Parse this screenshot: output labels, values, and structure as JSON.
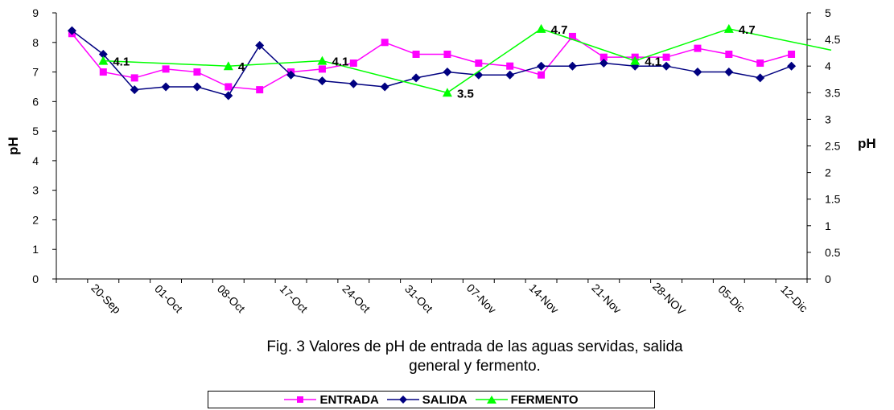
{
  "chart_data": {
    "type": "line",
    "title": "",
    "caption_line1": "Fig. 3 Valores de pH de entrada de las aguas servidas, salida",
    "caption_line2": "general y fermento.",
    "ylabel": "pH",
    "y2label": "pH",
    "ylim": [
      0,
      9
    ],
    "y2lim": [
      0,
      5
    ],
    "yticks": [
      0,
      1,
      2,
      3,
      4,
      5,
      6,
      7,
      8,
      9
    ],
    "y2ticks": [
      "0",
      "0.5",
      "1",
      "1.5",
      "2",
      "2.5",
      "3",
      "3.5",
      "4",
      "4.5",
      "5"
    ],
    "xticks": [
      "20-Sep",
      "01-Oct",
      "08-Oct",
      "17-Oct",
      "24-Oct",
      "31-Oct",
      "07-Nov",
      "14-Nov",
      "21-Nov",
      "28-NOV",
      "05-Dic",
      "12-Dic"
    ],
    "grid": false,
    "legend_position": "bottom",
    "series": [
      {
        "name": "ENTRADA",
        "color": "#ff00ff",
        "marker": "square",
        "axis": "left",
        "values": [
          8.3,
          7.0,
          6.8,
          7.1,
          7.0,
          6.5,
          6.4,
          7.0,
          7.1,
          7.3,
          8.0,
          7.6,
          7.6,
          7.3,
          7.2,
          6.9,
          8.2,
          7.5,
          7.5,
          7.5,
          7.8,
          7.6,
          7.3,
          7.6
        ]
      },
      {
        "name": "SALIDA",
        "color": "#000080",
        "marker": "diamond",
        "axis": "left",
        "values": [
          8.4,
          7.6,
          6.4,
          6.5,
          6.5,
          6.2,
          7.9,
          6.9,
          6.7,
          6.6,
          6.5,
          6.8,
          7.0,
          6.9,
          6.9,
          7.2,
          7.2,
          7.3,
          7.2,
          7.2,
          7.0,
          7.0,
          6.8,
          7.2
        ]
      },
      {
        "name": "FERMENTO",
        "color": "#00ff00",
        "marker": "triangle",
        "axis": "right",
        "point_index": [
          1,
          5,
          8,
          12,
          15,
          18,
          21,
          24
        ],
        "values": [
          4.1,
          4.0,
          4.1,
          3.5,
          4.7,
          4.1,
          4.7,
          4.3
        ],
        "labels": [
          "4.1",
          "4",
          "4.1",
          "3.5",
          "4.7",
          "4.1",
          "4.7",
          ""
        ]
      }
    ]
  }
}
